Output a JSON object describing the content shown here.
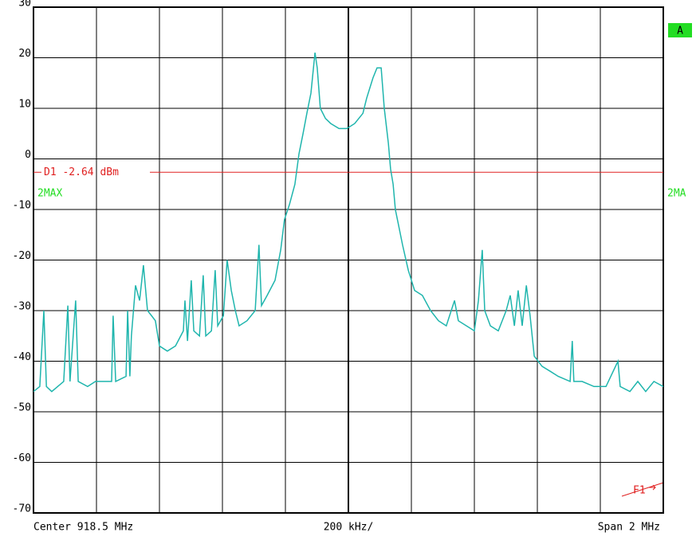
{
  "chart_data": {
    "type": "line",
    "x": [
      917.5,
      917.52,
      917.533,
      917.541,
      917.558,
      917.596,
      917.609,
      917.616,
      917.634,
      917.642,
      917.672,
      917.697,
      917.748,
      917.753,
      917.761,
      917.794,
      917.799,
      917.806,
      917.811,
      917.824,
      917.837,
      917.849,
      917.862,
      917.875,
      917.887,
      917.9,
      917.925,
      917.951,
      917.976,
      917.981,
      917.989,
      918.001,
      918.009,
      918.027,
      918.039,
      918.047,
      918.065,
      918.077,
      918.085,
      918.103,
      918.115,
      918.128,
      918.141,
      918.153,
      918.178,
      918.204,
      918.216,
      918.224,
      918.242,
      918.267,
      918.285,
      918.297,
      918.313,
      918.33,
      918.343,
      918.356,
      918.368,
      918.381,
      918.394,
      918.401,
      918.411,
      918.427,
      918.444,
      918.47,
      918.495,
      918.52,
      918.546,
      918.558,
      918.578,
      918.591,
      918.604,
      918.614,
      918.627,
      918.634,
      918.642,
      918.649,
      918.659,
      918.672,
      918.69,
      918.71,
      918.735,
      918.761,
      918.786,
      918.811,
      918.837,
      918.849,
      918.875,
      918.9,
      918.913,
      918.925,
      918.933,
      918.951,
      918.976,
      919.001,
      919.014,
      919.027,
      919.039,
      919.052,
      919.065,
      919.077,
      919.09,
      919.115,
      919.141,
      919.166,
      919.204,
      919.211,
      919.216,
      919.242,
      919.28,
      919.318,
      919.356,
      919.363,
      919.394,
      919.419,
      919.444,
      919.47,
      919.5
    ],
    "series": [
      {
        "name": "2MAX",
        "color": "#1fb5ad",
        "values": [
          -46,
          -45,
          -30,
          -45,
          -46,
          -44,
          -29,
          -44,
          -28,
          -44,
          -45,
          -44,
          -44,
          -31,
          -44,
          -43,
          -30,
          -43,
          -35,
          -25,
          -28,
          -21,
          -30,
          -31,
          -32,
          -37,
          -38,
          -37,
          -34,
          -28,
          -36,
          -24,
          -34,
          -35,
          -23,
          -35,
          -34,
          -22,
          -33,
          -31,
          -20,
          -26,
          -30,
          -33,
          -32,
          -30,
          -17,
          -29,
          -27,
          -24,
          -18,
          -12,
          -9,
          -5,
          1,
          5,
          9,
          13,
          21,
          18,
          10,
          8,
          7,
          6,
          6,
          7,
          9,
          12,
          16,
          18,
          18,
          10,
          3,
          -2,
          -5,
          -10,
          -13,
          -17,
          -22,
          -26,
          -27,
          -30,
          -32,
          -33,
          -28,
          -32,
          -33,
          -34,
          -28,
          -18,
          -30,
          -33,
          -34,
          -30,
          -27,
          -33,
          -26,
          -33,
          -25,
          -31,
          -39,
          -41,
          -42,
          -43,
          -44,
          -36,
          -44,
          -44,
          -45,
          -45,
          -40,
          -45,
          -46,
          -44,
          -46,
          -44,
          -45
        ]
      }
    ],
    "ylim": [
      -70,
      30
    ],
    "yticks": [
      30,
      20,
      10,
      0,
      -10,
      -20,
      -30,
      -40,
      -50,
      -60,
      -70
    ],
    "xlim": [
      917.5,
      919.5
    ],
    "grid": true,
    "display_line": {
      "label": "D1 -2.64 dBm",
      "value": -2.64,
      "color": "#e02020"
    },
    "trace_label_left": "2MAX",
    "trace_label_right": "2MA",
    "screen_label": "A",
    "frequency_label": "F1",
    "center_label": "Center 918.5 MHz",
    "div_label": "200 kHz/",
    "span_label": "Span 2 MHz"
  }
}
